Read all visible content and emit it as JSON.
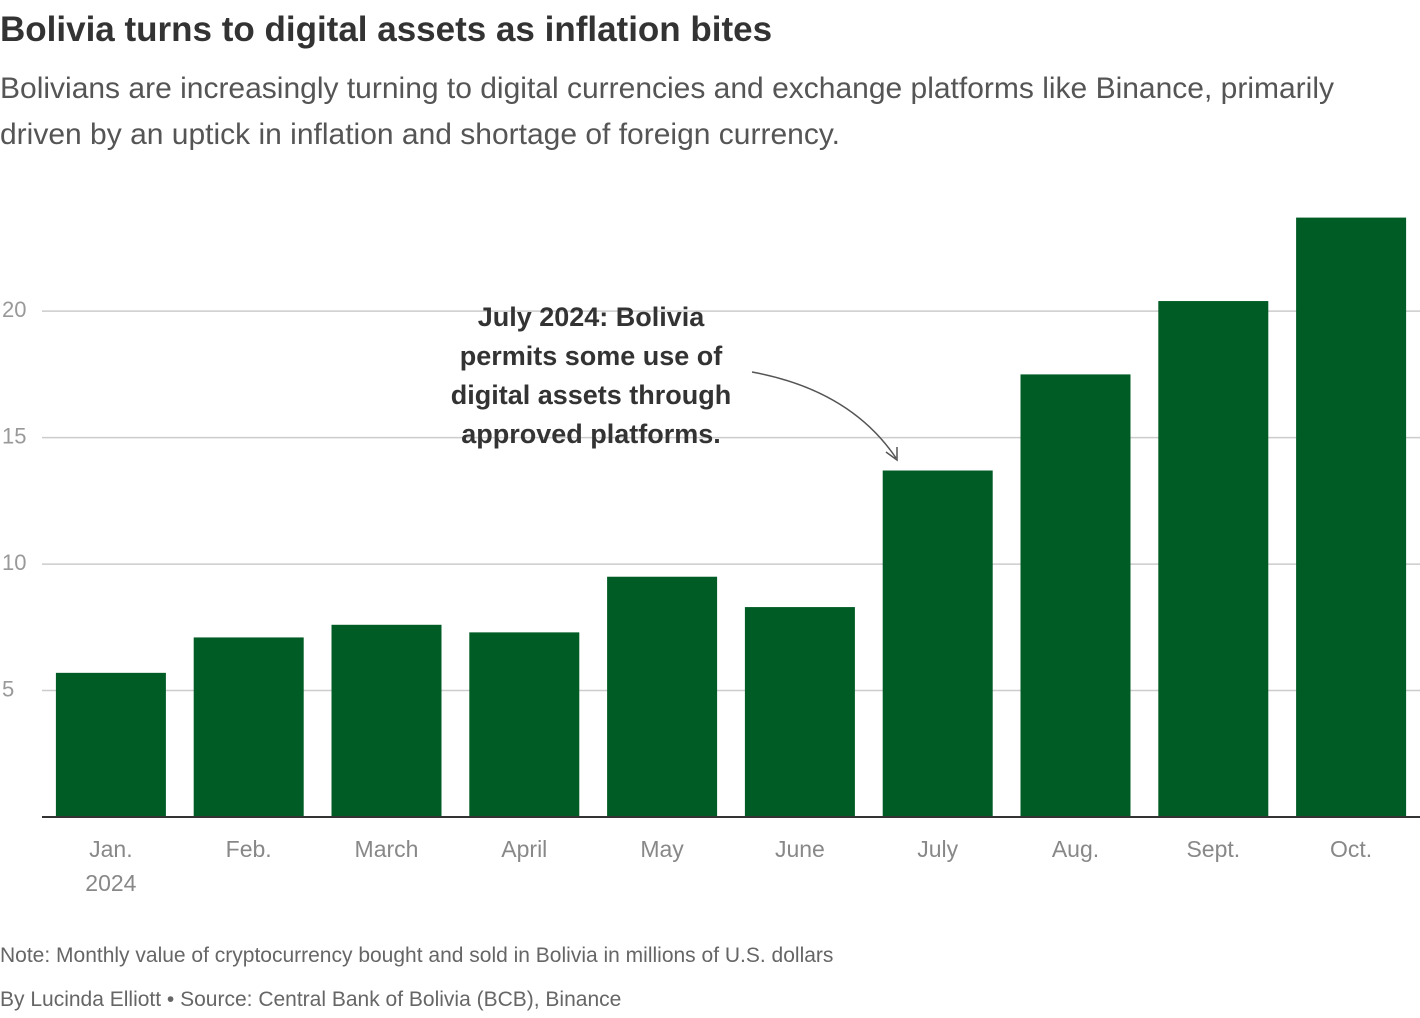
{
  "chart_data": {
    "type": "bar",
    "title": "Bolivia turns to digital assets as inflation bites",
    "subtitle": "Bolivians are increasingly turning to digital currencies and exchange platforms like Binance, primarily driven by an uptick in inflation and shortage of foreign currency.",
    "categories": [
      "Jan. 2024",
      "Feb.",
      "March",
      "April",
      "May",
      "June",
      "July",
      "Aug.",
      "Sept.",
      "Oct."
    ],
    "values": [
      5.7,
      7.1,
      7.6,
      7.3,
      9.5,
      8.3,
      13.7,
      17.5,
      20.4,
      23.7
    ],
    "color": "#005c25",
    "ylim": [
      0,
      24
    ],
    "yticks": [
      5,
      10,
      15,
      20
    ],
    "grid": true,
    "annotation": "July 2024: Bolivia permits some use of digital assets through approved platforms.",
    "note": "Note: Monthly value of cryptocurrency bought and sold in Bolivia in millions of U.S. dollars",
    "source": "By Lucinda Elliott • Source: Central Bank of Bolivia (BCB), Binance"
  }
}
